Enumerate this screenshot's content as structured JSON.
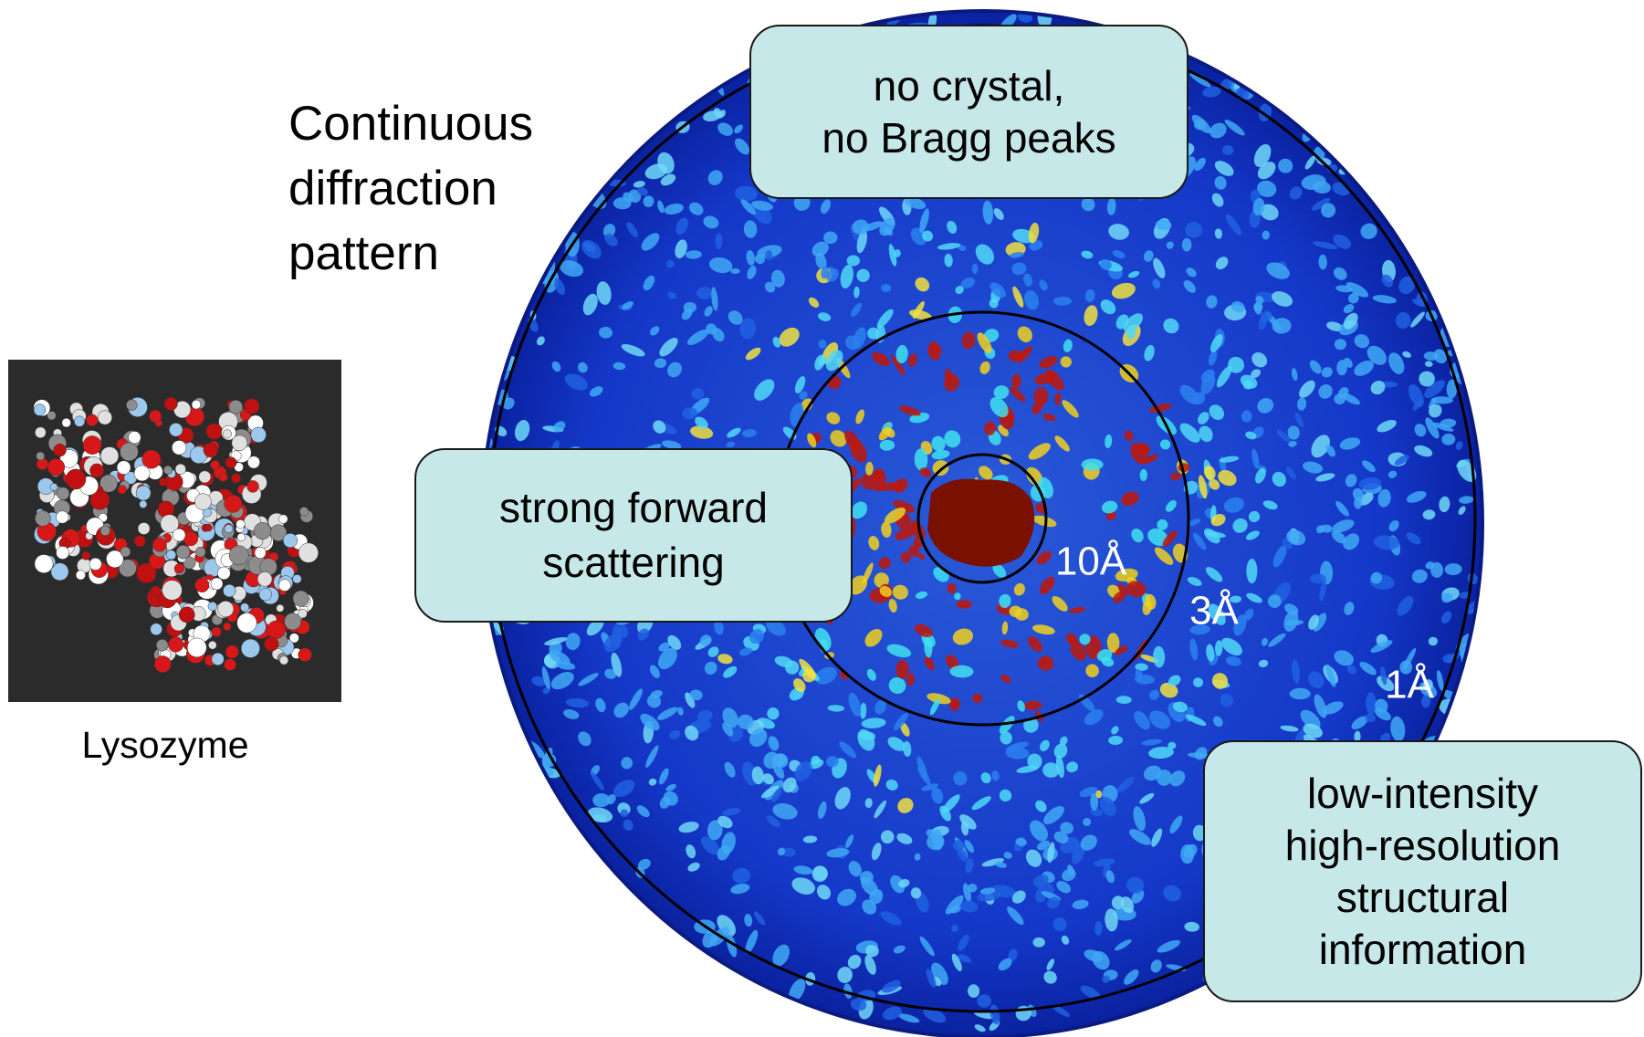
{
  "title_lines": [
    "Continuous",
    "diffraction",
    "pattern"
  ],
  "molecule_caption": "Lysozyme",
  "ring_labels": [
    "10Å",
    "3Å",
    "1Å"
  ],
  "callouts": [
    {
      "lines": [
        "no crystal,",
        "no Bragg peaks"
      ]
    },
    {
      "lines": [
        "strong forward",
        "scattering"
      ]
    },
    {
      "lines": [
        "low-intensity",
        "high-resolution",
        "structural",
        "information"
      ]
    }
  ]
}
